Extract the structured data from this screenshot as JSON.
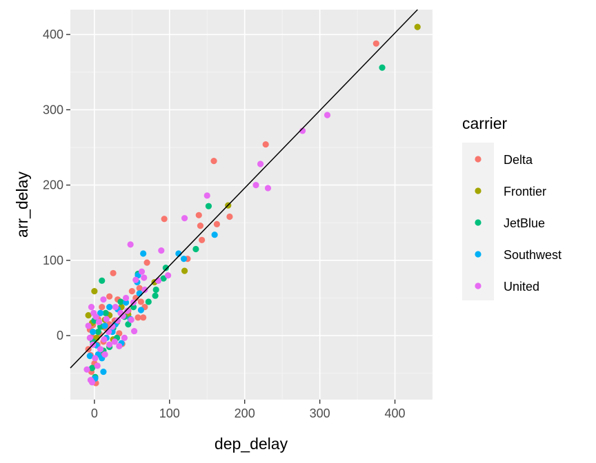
{
  "chart_data": {
    "type": "scatter",
    "xlabel": "dep_delay",
    "ylabel": "arr_delay",
    "xlim": [
      -32,
      450
    ],
    "ylim": [
      -85,
      433
    ],
    "xticks": [
      0,
      100,
      200,
      300,
      400
    ],
    "yticks": [
      0,
      100,
      200,
      300,
      400
    ],
    "grid": true,
    "legend": {
      "title": "carrier",
      "position": "right"
    },
    "reference_line": {
      "intercept": -10,
      "slope": 1.03
    },
    "series": [
      {
        "name": "Delta",
        "color": "#F8766D",
        "points": [
          [
            375,
            388
          ],
          [
            228,
            254
          ],
          [
            159,
            232
          ],
          [
            180,
            158
          ],
          [
            163,
            148
          ],
          [
            139,
            160
          ],
          [
            141,
            146
          ],
          [
            143,
            127
          ],
          [
            124,
            102
          ],
          [
            93,
            155
          ],
          [
            70,
            97
          ],
          [
            60,
            63
          ],
          [
            50,
            59
          ],
          [
            31,
            48
          ],
          [
            20,
            52
          ],
          [
            62,
            45
          ],
          [
            58,
            24
          ],
          [
            25,
            83
          ],
          [
            10,
            38
          ],
          [
            18,
            28
          ],
          [
            5,
            22
          ],
          [
            -2,
            14
          ],
          [
            -6,
            8
          ],
          [
            -3,
            -2
          ],
          [
            -8,
            -18
          ],
          [
            -5,
            -26
          ],
          [
            0,
            -37
          ],
          [
            4,
            -12
          ],
          [
            7,
            2
          ],
          [
            12,
            -8
          ],
          [
            15,
            10
          ],
          [
            20,
            15
          ],
          [
            27,
            20
          ],
          [
            33,
            3
          ],
          [
            37,
            -11
          ],
          [
            42,
            26
          ],
          [
            45,
            33
          ],
          [
            9,
            -22
          ],
          [
            -4,
            -48
          ],
          [
            2,
            -63
          ],
          [
            65,
            24
          ],
          [
            67,
            38
          ],
          [
            55,
            50
          ]
        ]
      },
      {
        "name": "Frontier",
        "color": "#A3A500",
        "points": [
          [
            430,
            410
          ],
          [
            178,
            173
          ],
          [
            120,
            86
          ],
          [
            80,
            71
          ],
          [
            45,
            28
          ],
          [
            30,
            18
          ],
          [
            20,
            27
          ],
          [
            14,
            21
          ],
          [
            -8,
            27
          ],
          [
            0,
            59
          ],
          [
            3,
            -3
          ],
          [
            10,
            12
          ],
          [
            -3,
            17
          ],
          [
            25,
            -5
          ],
          [
            36,
            38
          ]
        ]
      },
      {
        "name": "JetBlue",
        "color": "#00BF7D",
        "points": [
          [
            383,
            356
          ],
          [
            152,
            172
          ],
          [
            135,
            115
          ],
          [
            95,
            90
          ],
          [
            92,
            76
          ],
          [
            82,
            61
          ],
          [
            81,
            53
          ],
          [
            72,
            45
          ],
          [
            52,
            38
          ],
          [
            58,
            82
          ],
          [
            10,
            73
          ],
          [
            40,
            25
          ],
          [
            35,
            45
          ],
          [
            15,
            30
          ],
          [
            8,
            12
          ],
          [
            -2,
            -8
          ],
          [
            0,
            20
          ],
          [
            5,
            5
          ],
          [
            12,
            -20
          ],
          [
            -3,
            -43
          ],
          [
            20,
            -15
          ],
          [
            25,
            10
          ],
          [
            45,
            15
          ],
          [
            30,
            -3
          ],
          [
            1,
            -55
          ]
        ]
      },
      {
        "name": "Southwest",
        "color": "#00B0F6",
        "points": [
          [
            160,
            134
          ],
          [
            119,
            102
          ],
          [
            112,
            109
          ],
          [
            65,
            109
          ],
          [
            58,
            80
          ],
          [
            57,
            71
          ],
          [
            60,
            56
          ],
          [
            42,
            44
          ],
          [
            62,
            34
          ],
          [
            28,
            15
          ],
          [
            14,
            13
          ],
          [
            8,
            30
          ],
          [
            3,
            -13
          ],
          [
            -6,
            -27
          ],
          [
            12,
            -48
          ],
          [
            1,
            -57
          ],
          [
            20,
            38
          ],
          [
            24,
            5
          ],
          [
            31,
            35
          ],
          [
            16,
            -3
          ],
          [
            -2,
            5
          ],
          [
            5,
            -25
          ],
          [
            10,
            -30
          ],
          [
            36,
            -10
          ],
          [
            48,
            22
          ]
        ]
      },
      {
        "name": "United",
        "color": "#E76BF3",
        "points": [
          [
            310,
            293
          ],
          [
            277,
            272
          ],
          [
            221,
            228
          ],
          [
            215,
            200
          ],
          [
            231,
            196
          ],
          [
            150,
            186
          ],
          [
            120,
            156
          ],
          [
            89,
            113
          ],
          [
            98,
            80
          ],
          [
            85,
            73
          ],
          [
            63,
            85
          ],
          [
            66,
            77
          ],
          [
            48,
            121
          ],
          [
            55,
            74
          ],
          [
            67,
            61
          ],
          [
            42,
            50
          ],
          [
            49,
            21
          ],
          [
            53,
            6
          ],
          [
            35,
            30
          ],
          [
            28,
            38
          ],
          [
            12,
            48
          ],
          [
            -4,
            38
          ],
          [
            2,
            25
          ],
          [
            -8,
            13
          ],
          [
            -6,
            -3
          ],
          [
            -2,
            -12
          ],
          [
            -10,
            -45
          ],
          [
            -5,
            -59
          ],
          [
            -3,
            -62
          ],
          [
            4,
            -40
          ],
          [
            8,
            -18
          ],
          [
            13,
            -5
          ],
          [
            19,
            5
          ],
          [
            24,
            12
          ],
          [
            31,
            20
          ],
          [
            38,
            26
          ],
          [
            44,
            33
          ],
          [
            52,
            44
          ],
          [
            20,
            -12
          ],
          [
            27,
            -8
          ],
          [
            33,
            -14
          ],
          [
            40,
            -3
          ],
          [
            -1,
            30
          ],
          [
            6,
            18
          ],
          [
            16,
            22
          ],
          [
            14,
            -25
          ],
          [
            1,
            -30
          ]
        ]
      }
    ]
  }
}
